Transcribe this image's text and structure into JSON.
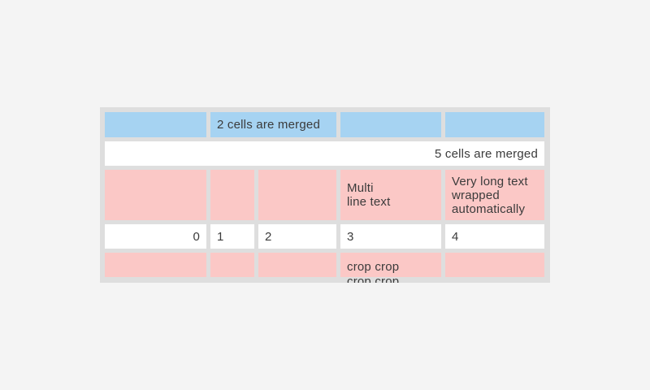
{
  "colors": {
    "page_background": "#f4f4f4",
    "table_background": "#dedede",
    "header_blue": "#a6d3f2",
    "pink": "#fbc8c6",
    "white": "#ffffff",
    "text": "#3b3b3b"
  },
  "table": {
    "rows": [
      {
        "cells": [
          {
            "text": ""
          },
          {
            "text": "2 cells are merged",
            "merged": 2
          },
          {
            "text": ""
          },
          {
            "text": ""
          }
        ]
      },
      {
        "cells": [
          {
            "text": "5 cells are merged",
            "merged": 5
          }
        ]
      },
      {
        "cells": [
          {
            "text": ""
          },
          {
            "text": ""
          },
          {
            "text": ""
          },
          {
            "text": "Multi\nline text"
          },
          {
            "text": "Very long text\nwrapped\nautomatically"
          }
        ]
      },
      {
        "cells": [
          {
            "text": "0"
          },
          {
            "text": "1"
          },
          {
            "text": "2"
          },
          {
            "text": "3"
          },
          {
            "text": "4"
          }
        ]
      },
      {
        "cells": [
          {
            "text": ""
          },
          {
            "text": ""
          },
          {
            "text": ""
          },
          {
            "text": "crop crop\ncrop crop"
          },
          {
            "text": ""
          }
        ]
      }
    ]
  }
}
